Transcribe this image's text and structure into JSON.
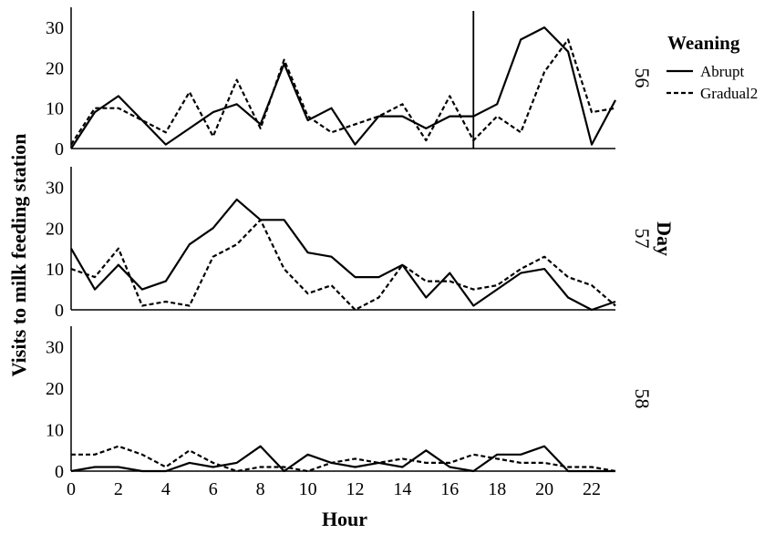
{
  "chart_data": {
    "type": "line",
    "xlabel": "Hour",
    "ylabel": "Visits to milk feeding station",
    "facet_label": "Day",
    "legend": {
      "title": "Weaning",
      "placement": "top-right",
      "entries": [
        {
          "name": "Abrupt",
          "style": "solid"
        },
        {
          "name": "Gradual2",
          "style": "dotted"
        }
      ]
    },
    "xlim": [
      0,
      23
    ],
    "ylim": [
      0,
      35
    ],
    "xticks": [
      0,
      2,
      4,
      6,
      8,
      10,
      12,
      14,
      16,
      18,
      20,
      22
    ],
    "yticks": [
      0,
      10,
      20,
      30
    ],
    "x": [
      0,
      1,
      2,
      3,
      4,
      5,
      6,
      7,
      8,
      9,
      10,
      11,
      12,
      13,
      14,
      15,
      16,
      17,
      18,
      19,
      20,
      21,
      22,
      23
    ],
    "panels": [
      {
        "day": "56",
        "vline_x": 17,
        "series": [
          {
            "name": "Abrupt",
            "values": [
              0,
              9,
              13,
              7,
              1,
              5,
              9,
              11,
              6,
              21,
              7,
              10,
              1,
              8,
              8,
              5,
              8,
              8,
              11,
              27,
              30,
              24,
              1,
              12
            ]
          },
          {
            "name": "Gradual2",
            "values": [
              1,
              10,
              10,
              7,
              4,
              14,
              3,
              17,
              5,
              22,
              8,
              4,
              6,
              8,
              11,
              2,
              13,
              2,
              8,
              4,
              19,
              27,
              9,
              10
            ]
          }
        ]
      },
      {
        "day": "57",
        "series": [
          {
            "name": "Abrupt",
            "values": [
              15,
              5,
              11,
              5,
              7,
              16,
              20,
              27,
              22,
              22,
              14,
              13,
              8,
              8,
              11,
              3,
              9,
              1,
              5,
              9,
              10,
              3,
              0,
              2
            ]
          },
          {
            "name": "Gradual2",
            "values": [
              10,
              8,
              15,
              1,
              2,
              1,
              13,
              16,
              22,
              10,
              4,
              6,
              0,
              3,
              11,
              7,
              7,
              5,
              6,
              10,
              13,
              8,
              6,
              1
            ]
          }
        ]
      },
      {
        "day": "58",
        "series": [
          {
            "name": "Abrupt",
            "values": [
              0,
              1,
              1,
              0,
              0,
              2,
              1,
              2,
              6,
              0,
              4,
              2,
              1,
              2,
              1,
              5,
              1,
              0,
              4,
              4,
              6,
              0,
              0,
              0
            ]
          },
          {
            "name": "Gradual2",
            "values": [
              4,
              4,
              6,
              4,
              1,
              5,
              2,
              0,
              1,
              1,
              0,
              2,
              3,
              2,
              3,
              2,
              2,
              4,
              3,
              2,
              2,
              1,
              1,
              0
            ]
          }
        ]
      }
    ]
  }
}
